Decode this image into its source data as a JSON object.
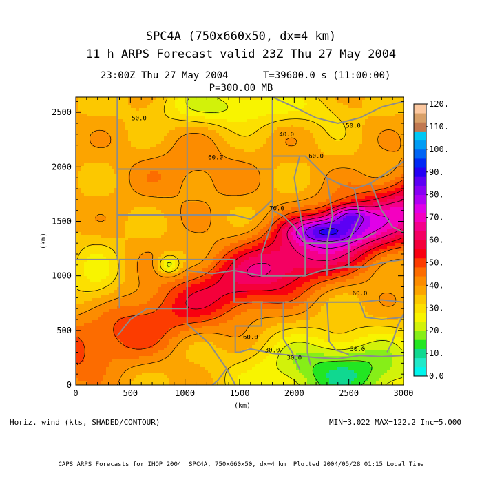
{
  "header": {
    "title": "SPC4A (750x660x50, dx=4 km)",
    "subtitle": "11 h ARPS Forecast valid 23Z Thu 27 May 2004",
    "time_line": "23:00Z Thu 27 May 2004      T=39600.0 s (11:00:00)",
    "level_line": "P=300.00 MB"
  },
  "footer": {
    "field_label": "Horiz. wind (kts, SHADED/CONTOUR)",
    "stats": "MIN=3.022 MAX=122.2 Inc=5.000",
    "credit": "CAPS ARPS Forecasts for IHOP 2004  SPC4A, 750x660x50, dx=4 km  Plotted 2004/05/28 01:15 Local Time"
  },
  "chart_data": {
    "type": "heatmap",
    "variable": "Horiz. wind",
    "units": "kts",
    "xlabel": "(km)",
    "ylabel": "(km)",
    "xlim": [
      0,
      3000
    ],
    "ylim": [
      0,
      2640
    ],
    "x_ticks": [
      "0",
      "500",
      "1000",
      "1500",
      "2000",
      "2500",
      "3000"
    ],
    "y_ticks": [
      "0",
      "500",
      "1000",
      "1500",
      "2000",
      "2500"
    ],
    "contour_labels": [
      {
        "text": "50.0",
        "x": 580,
        "y": 2430
      },
      {
        "text": "40.0",
        "x": 1930,
        "y": 2280
      },
      {
        "text": "50.0",
        "x": 2540,
        "y": 2360
      },
      {
        "text": "60.0",
        "x": 1280,
        "y": 2070
      },
      {
        "text": "60.0",
        "x": 2200,
        "y": 2080
      },
      {
        "text": "70.0",
        "x": 1840,
        "y": 1600
      },
      {
        "text": "60.0",
        "x": 2600,
        "y": 820
      },
      {
        "text": "60.0",
        "x": 1600,
        "y": 420
      },
      {
        "text": "30.0",
        "x": 1800,
        "y": 300
      },
      {
        "text": "30.0",
        "x": 2580,
        "y": 310
      },
      {
        "text": "30.0",
        "x": 2000,
        "y": 230
      }
    ],
    "colorbar": {
      "min": 0,
      "max": 120,
      "step": 5,
      "labels": [
        "120.",
        "110.",
        "100.",
        "90.",
        "80.",
        "70.",
        "60.",
        "50.",
        "40.",
        "30.",
        "20.",
        "10.",
        "0.0"
      ],
      "colors": [
        "#00f5ec",
        "#20e8c8",
        "#10d890",
        "#22e622",
        "#86ee18",
        "#d2f20a",
        "#f8f400",
        "#fce000",
        "#fcc800",
        "#fca400",
        "#fc8c00",
        "#fc6c00",
        "#fc3c00",
        "#f80010",
        "#f4003a",
        "#f40062",
        "#f4008a",
        "#f400c0",
        "#e000e8",
        "#b000f4",
        "#8800f4",
        "#5c00f4",
        "#2400f4",
        "#0028f4",
        "#0064f4",
        "#009cf4",
        "#00c8f4",
        "#c07850",
        "#d8a068",
        "#fcc8a0"
      ]
    },
    "stats": {
      "min": 3.022,
      "max": 122.2,
      "inc": 5.0
    }
  }
}
